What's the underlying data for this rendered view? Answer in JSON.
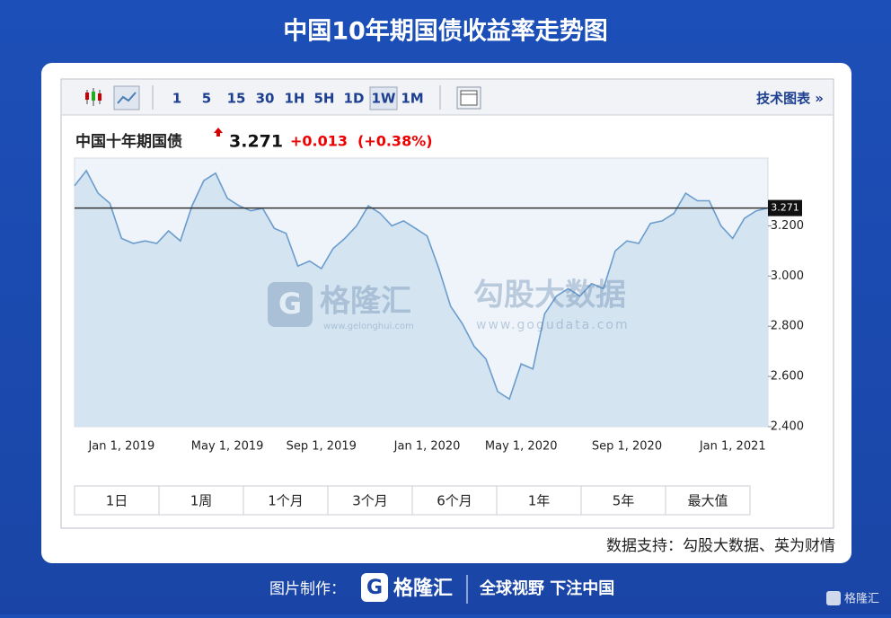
{
  "header": {
    "title": "中国10年期国债收益率走势图"
  },
  "toolbar": {
    "intervals": [
      "1",
      "5",
      "15",
      "30",
      "1H",
      "5H",
      "1D",
      "1W",
      "1M"
    ],
    "technical": "技术图表 »"
  },
  "quote": {
    "name": "中国十年期国债",
    "change": "+0.013",
    "change_pct": "(+0.38%)"
  },
  "ranges": [
    "1日",
    "1周",
    "1个月",
    "3个月",
    "6个月",
    "1年",
    "5年",
    "最大值"
  ],
  "watermarks": {
    "gelonghui": "格隆汇",
    "gelonghui_url": "www.gelonghui.com",
    "gogudata": "勾股大数据",
    "gogudata_url": "www.gogudata.com"
  },
  "source": "数据支持：勾股大数据、英为财情",
  "footer": {
    "made_by": "图片制作：",
    "brand": "格隆汇",
    "slogan": "全球视野 下注中国",
    "corner": "格隆汇"
  },
  "chart_data": {
    "type": "line",
    "color": "#6a9ccd",
    "fill": "#cfe0ef",
    "last_value": 3.271,
    "categories": [
      null,
      null,
      null,
      null,
      "Jan 1, 2019",
      null,
      null,
      null,
      null,
      null,
      null,
      null,
      null,
      "May 1, 2019",
      null,
      null,
      null,
      null,
      null,
      null,
      null,
      "Sep 1, 2019",
      null,
      null,
      null,
      null,
      null,
      null,
      null,
      null,
      "Jan 1, 2020",
      null,
      null,
      null,
      null,
      null,
      null,
      null,
      "May 1, 2020",
      null,
      null,
      null,
      null,
      null,
      null,
      null,
      null,
      "Sep 1, 2020",
      null,
      null,
      null,
      null,
      null,
      null,
      null,
      null,
      "Jan 1, 2021",
      null,
      null,
      null
    ],
    "values": [
      3.36,
      3.42,
      3.33,
      3.29,
      3.15,
      3.13,
      3.14,
      3.13,
      3.18,
      3.14,
      3.28,
      3.38,
      3.41,
      3.31,
      3.28,
      3.26,
      3.27,
      3.19,
      3.17,
      3.04,
      3.06,
      3.03,
      3.11,
      3.15,
      3.2,
      3.28,
      3.25,
      3.2,
      3.22,
      3.19,
      3.16,
      3.03,
      2.88,
      2.81,
      2.72,
      2.67,
      2.54,
      2.51,
      2.65,
      2.63,
      2.85,
      2.92,
      2.95,
      2.92,
      2.97,
      2.95,
      3.1,
      3.14,
      3.13,
      3.21,
      3.22,
      3.25,
      3.33,
      3.3,
      3.3,
      3.2,
      3.15,
      3.23,
      3.26,
      3.271
    ],
    "ylim": [
      2.4,
      3.47
    ],
    "yticks": [
      {
        "value": 2.4,
        "label": "2.400"
      },
      {
        "value": 2.6,
        "label": "2.600"
      },
      {
        "value": 2.8,
        "label": "2.800"
      },
      {
        "value": 3.0,
        "label": "3.000"
      },
      {
        "value": 3.2,
        "label": "3.200"
      }
    ],
    "grid": false
  }
}
